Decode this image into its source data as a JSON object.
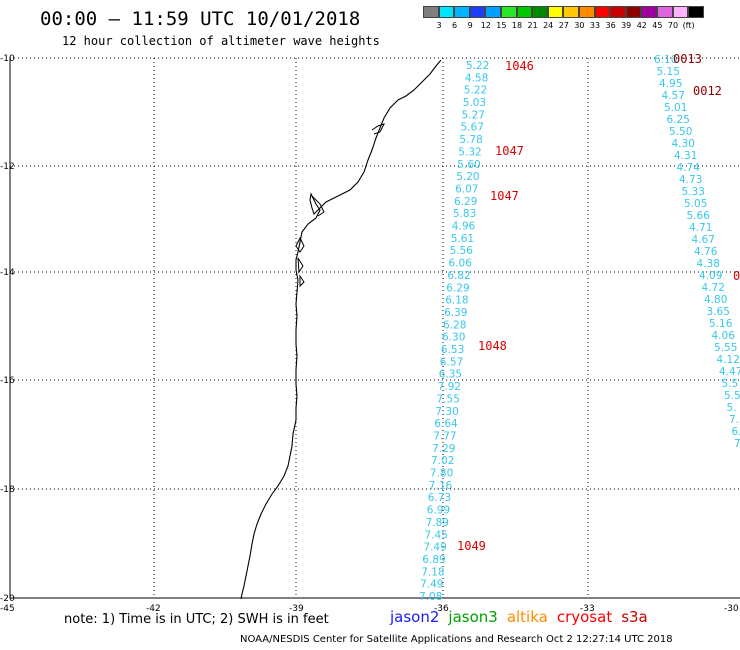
{
  "title": "00:00 – 11:59 UTC 10/01/2018",
  "subtitle": "12 hour collection of altimeter wave heights",
  "legend": {
    "colors": [
      "#7f7f7f",
      "#00e5ff",
      "#00b4ff",
      "#1e3cff",
      "#00a0ff",
      "#28e628",
      "#00c800",
      "#008c00",
      "#ffff00",
      "#ffc800",
      "#ff8c00",
      "#ff0000",
      "#c80000",
      "#8c0000",
      "#a000a0",
      "#dc64dc",
      "#ffb4ff",
      "#000000"
    ],
    "labels": [
      "3",
      "6",
      "9",
      "12",
      "15",
      "18",
      "21",
      "24",
      "27",
      "30",
      "33",
      "36",
      "39",
      "42",
      "45",
      "70",
      "(ft)"
    ]
  },
  "axes": {
    "lat_labels": [
      "-10",
      "-12",
      "-14",
      "-16",
      "-18",
      "-20"
    ],
    "lon_labels": [
      "-45",
      "-42",
      "-39",
      "-36",
      "-33",
      "-30"
    ]
  },
  "track_a": {
    "color": "#38c8e8",
    "values": [
      "5.22",
      "4.58",
      "5.22",
      "5.03",
      "5.27",
      "5.67",
      "5.78",
      "5.32",
      "5.60",
      "5.20",
      "6.07",
      "6.29",
      "5.83",
      "4.96",
      "5.61",
      "5.56",
      "6.06",
      "6.82",
      "6.29",
      "6.18",
      "6.39",
      "6.28",
      "6.30",
      "6.53",
      "6.57",
      "6.35",
      "7.92",
      "7.55",
      "7.30",
      "6.64",
      "7.77",
      "7.29",
      "7.02",
      "7.80",
      "7.16",
      "6.73",
      "6.99",
      "7.89",
      "7.45",
      "7.49",
      "6.89",
      "7.18",
      "7.49",
      "7.08"
    ],
    "times": [
      "1046",
      "1047",
      "1047",
      "1048",
      "1049"
    ]
  },
  "track_b": {
    "color": "#38c8e8",
    "values": [
      "6.10",
      "5.15",
      "4.95",
      "4.57",
      "5.01",
      "6.25",
      "5.50",
      "4.30",
      "4.31",
      "4.74",
      "4.73",
      "5.33",
      "5.05",
      "5.66",
      "4.71",
      "4.67",
      "4.76",
      "4.38",
      "4.09",
      "4.72",
      "4.80",
      "3.65",
      "5.16",
      "4.06",
      "5.55",
      "4.12",
      "4.47",
      "5.5",
      "5.5",
      "5.",
      "7.",
      "6.",
      "7."
    ],
    "times": [
      "0013",
      "0012",
      "0"
    ]
  },
  "note": "note:  1) Time is in UTC;  2) SWH is in feet",
  "satellites": [
    {
      "name": "jason2",
      "color": "#1a1aff"
    },
    {
      "name": "jason3",
      "color": "#00a000"
    },
    {
      "name": "altika",
      "color": "#ff8c00"
    },
    {
      "name": "cryosat",
      "color": "#ff0000"
    },
    {
      "name": "s3a",
      "color": "#c80000"
    }
  ],
  "credit": "NOAA/NESDIS Center for Satellite Applications and Research    Oct  2 12:27:14 UTC 2018"
}
